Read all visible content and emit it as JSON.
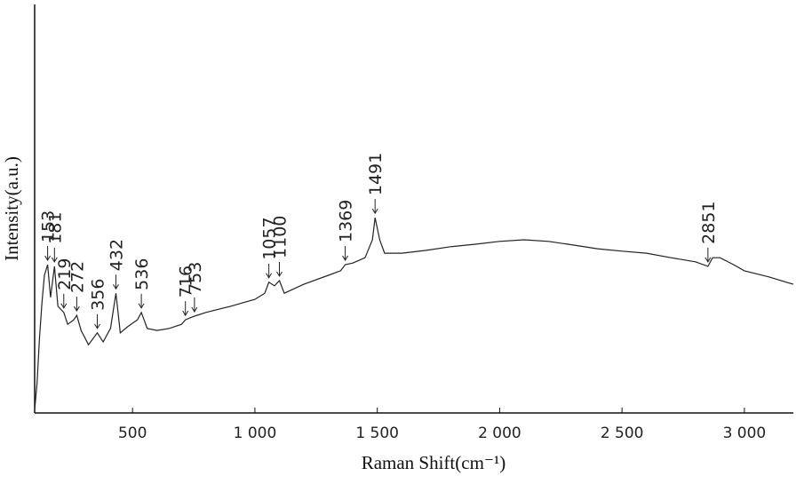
{
  "chart_data": {
    "type": "line",
    "x_label": "Raman Shift(cm⁻¹)",
    "y_label": "Intensity(a.u.)",
    "xlim": [
      100,
      3200
    ],
    "ylim": [
      0,
      100
    ],
    "xticks": [
      500,
      {
        "value": 1000,
        "label": "1 000"
      },
      {
        "value": 1500,
        "label": "1 500"
      },
      {
        "value": 2000,
        "label": "2 000"
      },
      {
        "value": 2500,
        "label": "2 500"
      },
      {
        "value": 3000,
        "label": "3 000"
      }
    ],
    "grid": false,
    "series": [
      {
        "color": "#222222",
        "x": [
          100,
          110,
          120,
          130,
          140,
          153,
          165,
          181,
          195,
          219,
          235,
          260,
          272,
          290,
          320,
          356,
          380,
          410,
          432,
          450,
          480,
          520,
          536,
          560,
          600,
          650,
          700,
          716,
          753,
          800,
          900,
          1000,
          1040,
          1057,
          1080,
          1100,
          1120,
          1200,
          1300,
          1350,
          1369,
          1400,
          1450,
          1480,
          1491,
          1510,
          1530,
          1600,
          1700,
          1800,
          1900,
          2000,
          2100,
          2200,
          2300,
          2400,
          2500,
          2600,
          2700,
          2800,
          2851,
          2870,
          2900,
          2950,
          3000,
          3100,
          3200
        ],
        "values": [
          0.7,
          7.6,
          18.5,
          27.2,
          33.7,
          36.3,
          28.3,
          35.9,
          26.1,
          24.6,
          21.7,
          22.8,
          23.9,
          20.2,
          16.7,
          19.6,
          17.4,
          20.7,
          29.3,
          19.6,
          21.1,
          22.8,
          24.6,
          20.7,
          20.2,
          20.7,
          21.7,
          22.8,
          23.7,
          24.6,
          26.1,
          27.8,
          29.3,
          32.0,
          31.1,
          32.4,
          29.3,
          31.5,
          33.7,
          34.8,
          36.3,
          36.7,
          38.0,
          42.4,
          47.8,
          42.4,
          39.1,
          39.1,
          39.8,
          40.7,
          41.3,
          42.0,
          42.4,
          42.0,
          41.1,
          40.2,
          39.6,
          39.1,
          38.0,
          37.0,
          35.9,
          38.0,
          38.0,
          36.5,
          34.8,
          33.3,
          31.5
        ]
      }
    ],
    "peaks": [
      153,
      181,
      219,
      272,
      356,
      432,
      536,
      716,
      753,
      1057,
      1100,
      1369,
      1491,
      2851
    ]
  }
}
